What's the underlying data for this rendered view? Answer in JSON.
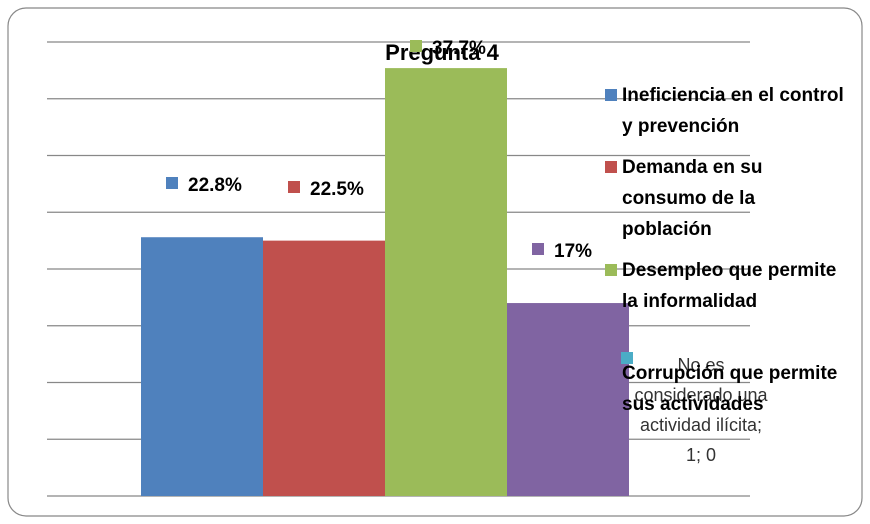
{
  "chart_data": {
    "type": "bar",
    "title": "Pregunta 4",
    "series": [
      {
        "name": "Ineficiencia en el control y prevención",
        "color": "#4f81bd",
        "values": [
          22.8
        ],
        "value_labels": [
          "22.8%"
        ]
      },
      {
        "name": "Demanda en su consumo de la población",
        "color": "#c0504d",
        "values": [
          22.5
        ],
        "value_labels": [
          "22.5%"
        ]
      },
      {
        "name": "Desempleo que permite la informalidad",
        "color": "#9bbb59",
        "values": [
          37.7
        ],
        "value_labels": [
          "37.7%"
        ]
      },
      {
        "name": "Corrupción que permite sus actividades",
        "color": "#8064a2",
        "values": [
          17
        ],
        "value_labels": [
          "17%"
        ]
      },
      {
        "color": "#4bacc6",
        "values": [
          0
        ],
        "value_labels": [
          "No es considerado una actividad ilícita; 1; 0"
        ]
      }
    ],
    "ylim": [
      0,
      40
    ],
    "yticks": [
      0,
      5,
      10,
      15,
      20,
      25,
      30,
      35,
      40
    ],
    "grid": true,
    "legend": "right"
  }
}
